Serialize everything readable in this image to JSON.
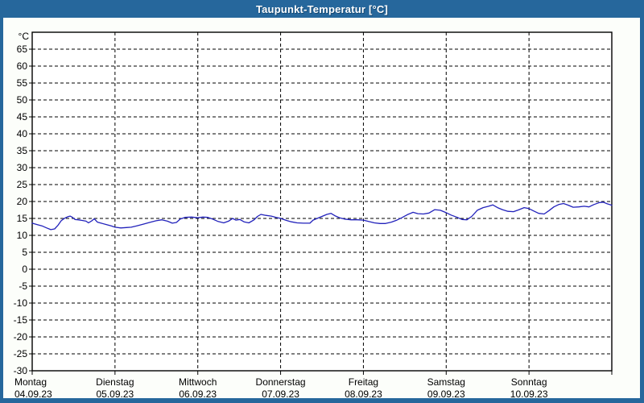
{
  "window": {
    "title": "Taupunkt-Temperatur [°C]"
  },
  "colors": {
    "frame": "#26679c",
    "title_text": "#ffffff",
    "content_background": "#fcfefa",
    "plot_background": "#ffffff",
    "grid": "#000000",
    "axis": "#000000",
    "series_line": "#2222bb",
    "label_text": "#000000"
  },
  "chart_data": {
    "type": "line",
    "title": "Taupunkt-Temperatur [°C]",
    "y_unit_label": "°C",
    "ylabel": "",
    "xlabel": "",
    "ylim": [
      -30,
      70
    ],
    "y_ticks": [
      65,
      60,
      55,
      50,
      45,
      40,
      35,
      30,
      25,
      20,
      15,
      10,
      5,
      0,
      -5,
      -10,
      -15,
      -20,
      -25,
      -30
    ],
    "x_range_hours": [
      0,
      168
    ],
    "x_day_tick_hours": [
      0,
      24,
      48,
      72,
      96,
      120,
      144
    ],
    "x_days": [
      {
        "name": "Montag",
        "date": "04.09.23"
      },
      {
        "name": "Dienstag",
        "date": "05.09.23"
      },
      {
        "name": "Mittwoch",
        "date": "06.09.23"
      },
      {
        "name": "Donnerstag",
        "date": "07.09.23"
      },
      {
        "name": "Freitag",
        "date": "08.09.23"
      },
      {
        "name": "Samstag",
        "date": "09.09.23"
      },
      {
        "name": "Sonntag",
        "date": "10.09.23"
      }
    ],
    "grid": "dashed",
    "legend_position": "none",
    "series": [
      {
        "name": "Taupunkt",
        "color": "#2222bb",
        "points": [
          [
            0,
            13.6
          ],
          [
            1.4,
            13.2
          ],
          [
            2.8,
            12.8
          ],
          [
            4.2,
            12.2
          ],
          [
            5.4,
            11.7
          ],
          [
            6.5,
            11.9
          ],
          [
            7.5,
            13.0
          ],
          [
            8.4,
            14.3
          ],
          [
            9.3,
            15.0
          ],
          [
            10.3,
            15.5
          ],
          [
            11.0,
            15.7
          ],
          [
            11.7,
            15.3
          ],
          [
            12.4,
            14.7
          ],
          [
            13.3,
            14.6
          ],
          [
            14.5,
            14.4
          ],
          [
            15.6,
            14.2
          ],
          [
            16.3,
            13.7
          ],
          [
            17.3,
            14.3
          ],
          [
            18.0,
            14.9
          ],
          [
            18.9,
            13.9
          ],
          [
            20.0,
            13.6
          ],
          [
            21.5,
            13.2
          ],
          [
            22.9,
            12.8
          ],
          [
            24.0,
            12.4
          ],
          [
            25.7,
            12.2
          ],
          [
            27.3,
            12.3
          ],
          [
            28.7,
            12.4
          ],
          [
            30.3,
            12.8
          ],
          [
            32.2,
            13.3
          ],
          [
            34.0,
            13.8
          ],
          [
            35.9,
            14.3
          ],
          [
            37.6,
            14.6
          ],
          [
            39.2,
            14.2
          ],
          [
            40.6,
            13.6
          ],
          [
            41.8,
            13.8
          ],
          [
            42.9,
            14.8
          ],
          [
            44.3,
            15.3
          ],
          [
            46.2,
            15.4
          ],
          [
            48.0,
            15.2
          ],
          [
            49.5,
            15.4
          ],
          [
            50.9,
            15.3
          ],
          [
            52.3,
            14.8
          ],
          [
            53.9,
            14.1
          ],
          [
            55.5,
            13.7
          ],
          [
            56.9,
            14.2
          ],
          [
            58.1,
            15.0
          ],
          [
            59.0,
            14.5
          ],
          [
            60.2,
            14.7
          ],
          [
            61.4,
            14.0
          ],
          [
            62.8,
            13.7
          ],
          [
            64.2,
            14.5
          ],
          [
            65.3,
            15.6
          ],
          [
            66.3,
            16.2
          ],
          [
            67.7,
            15.9
          ],
          [
            69.3,
            15.7
          ],
          [
            70.7,
            15.3
          ],
          [
            72.0,
            15.0
          ],
          [
            73.7,
            14.4
          ],
          [
            75.1,
            14.0
          ],
          [
            76.8,
            13.7
          ],
          [
            78.6,
            13.6
          ],
          [
            80.5,
            13.6
          ],
          [
            81.4,
            14.5
          ],
          [
            82.6,
            15.0
          ],
          [
            84.0,
            15.6
          ],
          [
            85.4,
            16.2
          ],
          [
            86.6,
            16.5
          ],
          [
            87.7,
            15.8
          ],
          [
            89.1,
            15.2
          ],
          [
            90.5,
            14.8
          ],
          [
            92.4,
            14.6
          ],
          [
            94.3,
            14.6
          ],
          [
            96.0,
            14.5
          ],
          [
            97.5,
            14.1
          ],
          [
            99.2,
            13.7
          ],
          [
            100.8,
            13.5
          ],
          [
            102.4,
            13.5
          ],
          [
            104.1,
            13.9
          ],
          [
            105.7,
            14.5
          ],
          [
            107.1,
            15.2
          ],
          [
            108.7,
            16.1
          ],
          [
            110.4,
            16.8
          ],
          [
            111.8,
            16.4
          ],
          [
            113.4,
            16.3
          ],
          [
            115.0,
            16.6
          ],
          [
            116.7,
            17.6
          ],
          [
            118.3,
            17.4
          ],
          [
            120.0,
            16.7
          ],
          [
            121.4,
            16.0
          ],
          [
            123.0,
            15.4
          ],
          [
            124.6,
            14.7
          ],
          [
            126.0,
            14.6
          ],
          [
            127.4,
            15.6
          ],
          [
            129.0,
            17.4
          ],
          [
            130.7,
            18.2
          ],
          [
            132.3,
            18.6
          ],
          [
            133.5,
            19.0
          ],
          [
            134.9,
            18.2
          ],
          [
            136.3,
            17.6
          ],
          [
            137.9,
            17.1
          ],
          [
            139.5,
            17.0
          ],
          [
            140.9,
            17.5
          ],
          [
            142.6,
            18.2
          ],
          [
            144.0,
            17.9
          ],
          [
            145.4,
            17.2
          ],
          [
            146.8,
            16.5
          ],
          [
            148.4,
            16.3
          ],
          [
            149.8,
            17.3
          ],
          [
            151.2,
            18.4
          ],
          [
            152.6,
            19.1
          ],
          [
            154.0,
            19.4
          ],
          [
            155.4,
            18.9
          ],
          [
            156.8,
            18.3
          ],
          [
            158.4,
            18.4
          ],
          [
            160.0,
            18.6
          ],
          [
            161.4,
            18.4
          ],
          [
            162.8,
            19.1
          ],
          [
            164.4,
            19.7
          ],
          [
            165.5,
            19.8
          ],
          [
            166.7,
            19.3
          ],
          [
            168.0,
            18.9
          ]
        ]
      }
    ]
  }
}
